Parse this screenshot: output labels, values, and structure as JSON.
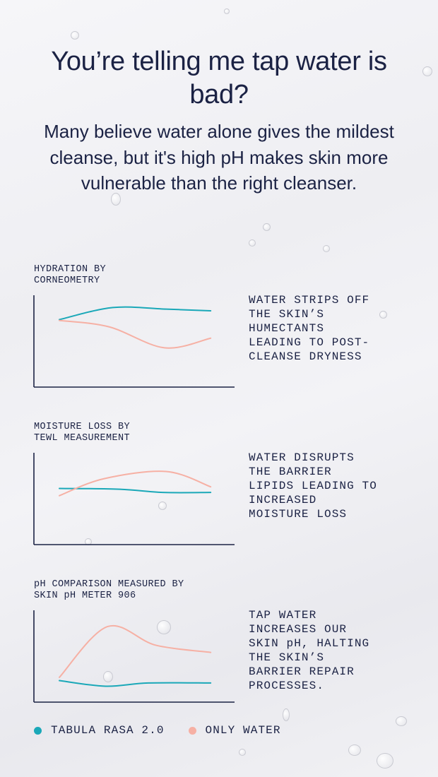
{
  "title": "You’re telling me tap water is bad?",
  "subtitle": "Many believe water alone gives the mildest cleanse, but it's high pH makes skin more vulnerable than the right cleanser.",
  "colors": {
    "tabula": "#1aa8b8",
    "water": "#f6b0a4",
    "text": "#1b2244",
    "axis": "#1b2244"
  },
  "legend": [
    {
      "label": "TABULA RASA 2.0",
      "color": "#1aa8b8"
    },
    {
      "label": "ONLY WATER",
      "color": "#f6b0a4"
    }
  ],
  "chart_data": [
    {
      "type": "line",
      "title": "HYDRATION BY\nCORNEOMETRY",
      "annotation": "WATER STRIPS OFF\nTHE SKIN’S\nHUMECTANTS\nLEADING TO POST-\nCLEANSE DRYNESS",
      "xlim": [
        0,
        10
      ],
      "ylim": [
        0,
        10
      ],
      "grid": false,
      "series": [
        {
          "name": "TABULA RASA 2.0",
          "x": [
            0,
            3,
            6,
            8.5
          ],
          "y": [
            7.5,
            9,
            8.8,
            8.6
          ]
        },
        {
          "name": "ONLY WATER",
          "x": [
            0,
            2.8,
            5.9,
            8.5
          ],
          "y": [
            7.4,
            6.6,
            4,
            5.2
          ]
        }
      ]
    },
    {
      "type": "line",
      "title": "MOISTURE LOSS BY\nTEWL MEASUREMENT",
      "annotation": "WATER DISRUPTS\nTHE BARRIER\nLIPIDS LEADING TO\nINCREASED\nMOISTURE LOSS",
      "xlim": [
        0,
        10
      ],
      "ylim": [
        0,
        10
      ],
      "grid": false,
      "series": [
        {
          "name": "TABULA RASA 2.0",
          "x": [
            0,
            3.4,
            5.8,
            8.5
          ],
          "y": [
            6.1,
            6,
            5.6,
            5.6
          ]
        },
        {
          "name": "ONLY WATER",
          "x": [
            0,
            2.5,
            6,
            8.5
          ],
          "y": [
            5.2,
            7.3,
            8.2,
            6.3
          ]
        }
      ]
    },
    {
      "type": "line",
      "title": "pH COMPARISON MEASURED BY\nSKIN pH METER 906",
      "annotation": "TAP WATER\nINCREASES OUR\nSKIN pH, HALTING\nTHE SKIN’S\nBARRIER REPAIR\nPROCESSES.",
      "xlim": [
        0,
        10
      ],
      "ylim": [
        0,
        10
      ],
      "grid": false,
      "series": [
        {
          "name": "TABULA RASA 2.0",
          "x": [
            0,
            2.6,
            5,
            8.5
          ],
          "y": [
            1.8,
            1.1,
            1.5,
            1.5
          ]
        },
        {
          "name": "ONLY WATER",
          "x": [
            0,
            2.7,
            5.4,
            8.5
          ],
          "y": [
            2.2,
            8.5,
            6.2,
            5.3
          ]
        }
      ]
    }
  ]
}
